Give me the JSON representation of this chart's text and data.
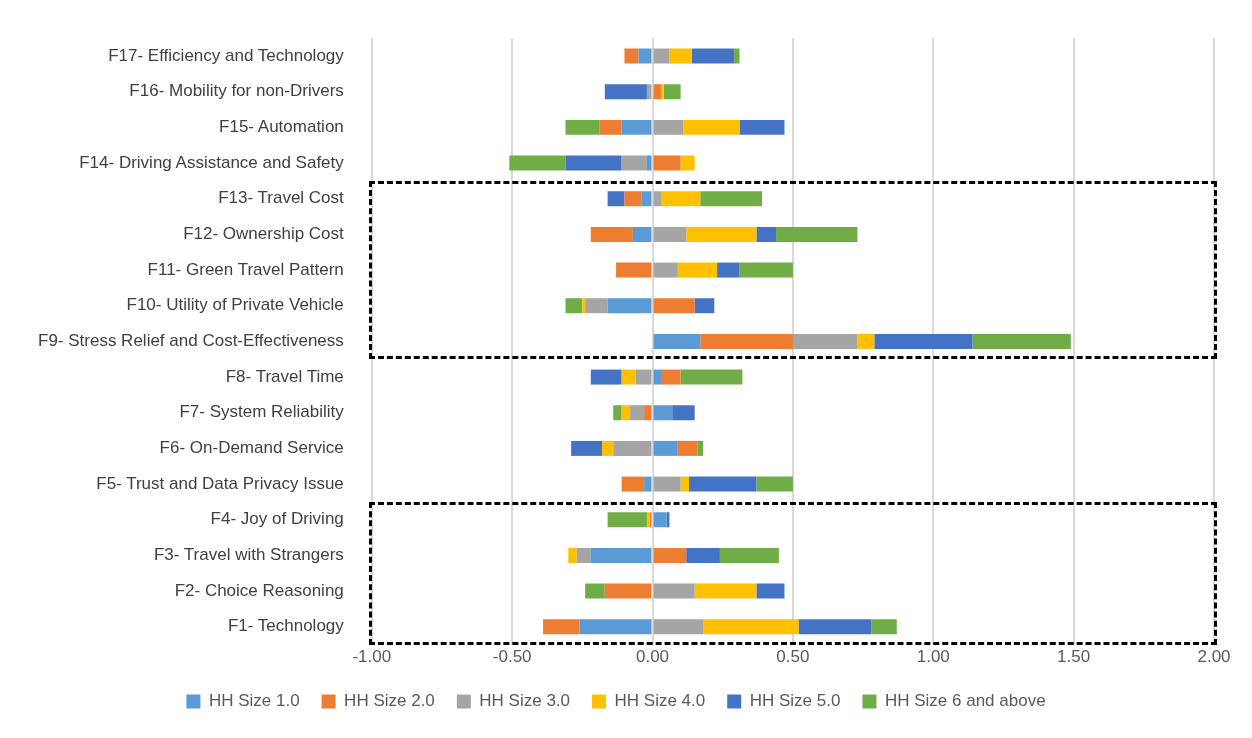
{
  "chart_data": {
    "type": "bar",
    "orientation": "horizontal",
    "stacked": true,
    "categories": [
      "F17- Efficiency and Technology",
      "F16- Mobility for non-Drivers",
      "F15- Automation",
      "F14- Driving Assistance and Safety",
      "F13- Travel Cost",
      "F12- Ownership Cost",
      "F11- Green Travel Pattern",
      "F10- Utility of Private Vehicle",
      "F9- Stress Relief and Cost-Effectiveness",
      "F8- Travel Time",
      "F7- System Reliability",
      "F6- On-Demand Service",
      "F5- Trust and Data Privacy Issue",
      "F4- Joy of Driving",
      "F3- Travel with Strangers",
      "F2- Choice Reasoning",
      "F1- Technology"
    ],
    "series": [
      {
        "name": "HH Size 1.0",
        "color": "#5b9bd5",
        "values": [
          -0.05,
          null,
          -0.11,
          -0.02,
          -0.04,
          -0.07,
          null,
          -0.16,
          0.17,
          0.03,
          0.07,
          0.09,
          -0.03,
          0.05,
          -0.22,
          null,
          -0.26
        ]
      },
      {
        "name": "HH Size 2.0",
        "color": "#ed7d31",
        "values": [
          -0.05,
          0.03,
          -0.08,
          0.1,
          -0.06,
          -0.15,
          -0.13,
          0.15,
          0.33,
          0.07,
          -0.03,
          0.07,
          -0.08,
          -0.01,
          0.12,
          -0.17,
          -0.13
        ]
      },
      {
        "name": "HH Size 3.0",
        "color": "#a5a5a5",
        "values": [
          0.06,
          -0.02,
          0.11,
          -0.09,
          0.03,
          0.12,
          0.09,
          -0.08,
          0.23,
          -0.06,
          -0.05,
          -0.14,
          0.1,
          null,
          -0.05,
          0.15,
          0.18
        ]
      },
      {
        "name": "HH Size 4.0",
        "color": "#ffc000",
        "values": [
          0.08,
          0.01,
          0.2,
          0.05,
          0.14,
          0.25,
          0.14,
          -0.01,
          0.06,
          -0.05,
          -0.03,
          -0.04,
          0.03,
          -0.01,
          -0.03,
          0.22,
          0.34
        ]
      },
      {
        "name": "HH Size 5.0",
        "color": "#4472c4",
        "values": [
          0.15,
          -0.15,
          0.16,
          -0.2,
          -0.06,
          0.07,
          0.08,
          0.07,
          0.35,
          -0.11,
          0.08,
          -0.11,
          0.24,
          0.01,
          0.12,
          0.1,
          0.26
        ]
      },
      {
        "name": "HH Size 6 and above",
        "color": "#70ad47",
        "values": [
          0.02,
          0.06,
          -0.12,
          -0.2,
          0.22,
          0.29,
          0.19,
          -0.06,
          0.35,
          0.22,
          -0.03,
          0.02,
          0.13,
          -0.14,
          0.21,
          -0.07,
          0.09
        ]
      }
    ],
    "xlim": [
      -1,
      2
    ],
    "xticks": [
      {
        "value": -1,
        "label": "-1.00"
      },
      {
        "value": -0.5,
        "label": "-0.50"
      },
      {
        "value": 0,
        "label": "0.00"
      },
      {
        "value": 0.5,
        "label": "0.50"
      },
      {
        "value": 1,
        "label": "1.00"
      },
      {
        "value": 1.5,
        "label": "1.50"
      },
      {
        "value": 2,
        "label": "2.00"
      }
    ],
    "grid": "x",
    "legend": "bottom"
  }
}
